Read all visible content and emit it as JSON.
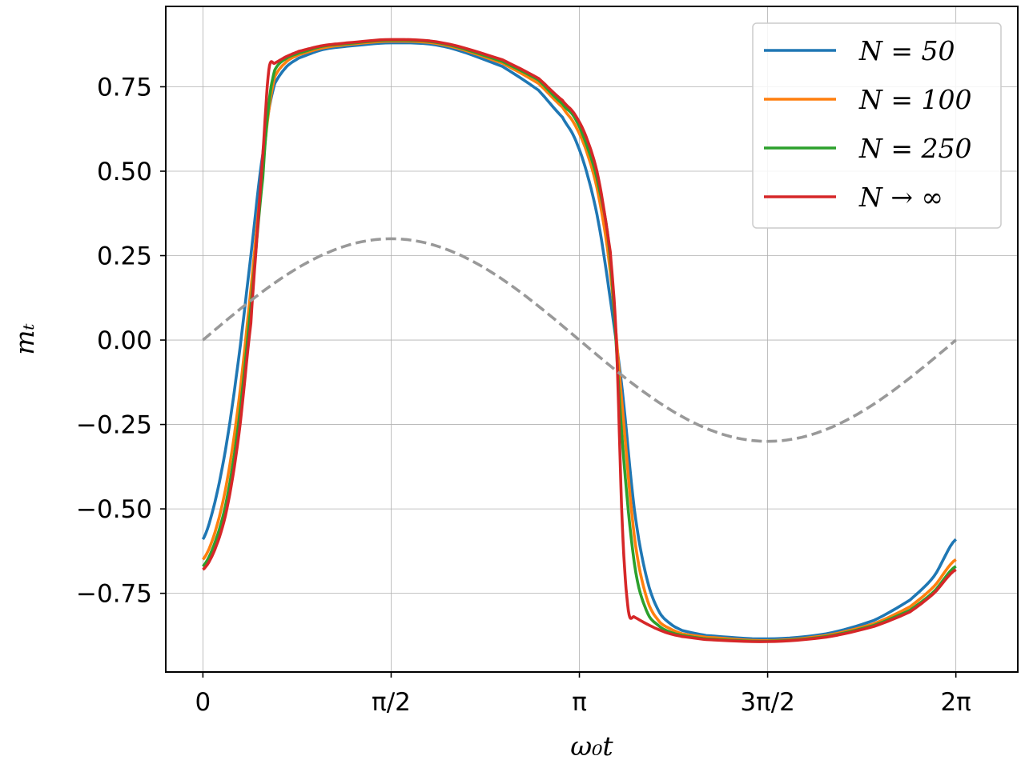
{
  "chart_data": {
    "type": "line",
    "title": "",
    "xlabel": "ω₀t",
    "ylabel": "mₜ",
    "xlim": [
      -0.31,
      6.8
    ],
    "ylim": [
      -0.983,
      0.988
    ],
    "x_ticks": [
      {
        "value": 0,
        "label": "0"
      },
      {
        "value": 1.5708,
        "label": "π/2"
      },
      {
        "value": 3.1416,
        "label": "π"
      },
      {
        "value": 4.7124,
        "label": "3π/2"
      },
      {
        "value": 6.2832,
        "label": "2π"
      }
    ],
    "y_ticks": [
      {
        "value": 0.75,
        "label": "0.75"
      },
      {
        "value": 0.5,
        "label": "0.50"
      },
      {
        "value": 0.25,
        "label": "0.25"
      },
      {
        "value": 0.0,
        "label": "0.00"
      },
      {
        "value": -0.25,
        "label": "−0.25"
      },
      {
        "value": -0.5,
        "label": "−0.50"
      },
      {
        "value": -0.75,
        "label": "−0.75"
      }
    ],
    "grid": true,
    "legend_position": "top-right",
    "series": [
      {
        "name": "N = 50",
        "color": "#1f77b4",
        "style": "solid",
        "x": [
          0,
          0.1,
          0.2,
          0.3,
          0.4,
          0.5,
          0.55,
          0.6,
          0.7,
          0.8,
          1.0,
          1.2,
          1.5708,
          2.0,
          2.5,
          2.8,
          3.0,
          3.1,
          3.2,
          3.3,
          3.4,
          3.5,
          3.6,
          3.7,
          3.8,
          3.9,
          4.0,
          4.2,
          4.7124,
          5.2,
          5.6,
          5.9,
          6.1,
          6.2832
        ],
        "y": [
          -0.59,
          -0.48,
          -0.3,
          -0.05,
          0.25,
          0.55,
          0.68,
          0.76,
          0.81,
          0.835,
          0.86,
          0.87,
          0.88,
          0.87,
          0.81,
          0.74,
          0.66,
          0.6,
          0.5,
          0.35,
          0.12,
          -0.15,
          -0.5,
          -0.7,
          -0.8,
          -0.84,
          -0.86,
          -0.875,
          -0.885,
          -0.87,
          -0.83,
          -0.77,
          -0.7,
          -0.59
        ]
      },
      {
        "name": "N = 100",
        "color": "#ff7f0e",
        "style": "solid",
        "x": [
          0,
          0.1,
          0.2,
          0.3,
          0.4,
          0.5,
          0.55,
          0.6,
          0.7,
          0.8,
          1.0,
          1.2,
          1.5708,
          2.0,
          2.5,
          2.8,
          3.0,
          3.1,
          3.2,
          3.3,
          3.4,
          3.5,
          3.6,
          3.7,
          3.8,
          3.9,
          4.0,
          4.2,
          4.7124,
          5.2,
          5.6,
          5.9,
          6.1,
          6.2832
        ],
        "y": [
          -0.65,
          -0.57,
          -0.42,
          -0.18,
          0.15,
          0.5,
          0.68,
          0.78,
          0.825,
          0.845,
          0.865,
          0.875,
          0.885,
          0.875,
          0.82,
          0.76,
          0.69,
          0.64,
          0.56,
          0.43,
          0.2,
          -0.2,
          -0.58,
          -0.76,
          -0.83,
          -0.855,
          -0.87,
          -0.88,
          -0.89,
          -0.875,
          -0.84,
          -0.79,
          -0.73,
          -0.65
        ]
      },
      {
        "name": "N = 250",
        "color": "#2ca02c",
        "style": "solid",
        "x": [
          0,
          0.1,
          0.2,
          0.3,
          0.4,
          0.5,
          0.55,
          0.6,
          0.7,
          0.8,
          1.0,
          1.2,
          1.5708,
          2.0,
          2.5,
          2.8,
          3.0,
          3.1,
          3.2,
          3.3,
          3.4,
          3.5,
          3.6,
          3.7,
          3.8,
          3.9,
          4.0,
          4.2,
          4.7124,
          5.2,
          5.6,
          5.9,
          6.1,
          6.2832
        ],
        "y": [
          -0.67,
          -0.6,
          -0.47,
          -0.24,
          0.1,
          0.48,
          0.7,
          0.8,
          0.835,
          0.85,
          0.87,
          0.878,
          0.888,
          0.878,
          0.825,
          0.77,
          0.7,
          0.66,
          0.58,
          0.46,
          0.24,
          -0.3,
          -0.66,
          -0.8,
          -0.845,
          -0.865,
          -0.875,
          -0.885,
          -0.892,
          -0.878,
          -0.845,
          -0.8,
          -0.745,
          -0.67
        ]
      },
      {
        "name": "N → ∞",
        "color": "#d62728",
        "style": "solid",
        "x": [
          0,
          0.1,
          0.2,
          0.3,
          0.4,
          0.45,
          0.5,
          0.55,
          0.6,
          0.7,
          0.8,
          1.0,
          1.2,
          1.5708,
          2.0,
          2.5,
          2.8,
          3.0,
          3.1,
          3.2,
          3.3,
          3.4,
          3.45,
          3.5,
          3.55,
          3.6,
          3.7,
          3.8,
          3.9,
          4.0,
          4.2,
          4.7124,
          5.2,
          5.6,
          5.9,
          6.1,
          6.2832
        ],
        "y": [
          -0.68,
          -0.62,
          -0.5,
          -0.28,
          0.05,
          0.3,
          0.55,
          0.8,
          0.82,
          0.84,
          0.855,
          0.872,
          0.88,
          0.89,
          0.88,
          0.83,
          0.775,
          0.71,
          0.67,
          0.6,
          0.48,
          0.26,
          0.0,
          -0.55,
          -0.8,
          -0.82,
          -0.84,
          -0.857,
          -0.87,
          -0.878,
          -0.887,
          -0.893,
          -0.88,
          -0.848,
          -0.805,
          -0.75,
          -0.68
        ]
      },
      {
        "name": "",
        "color": "#999999",
        "style": "dashed",
        "function": "0.3*sin(x)",
        "x_range": [
          0,
          6.2832
        ]
      }
    ]
  }
}
